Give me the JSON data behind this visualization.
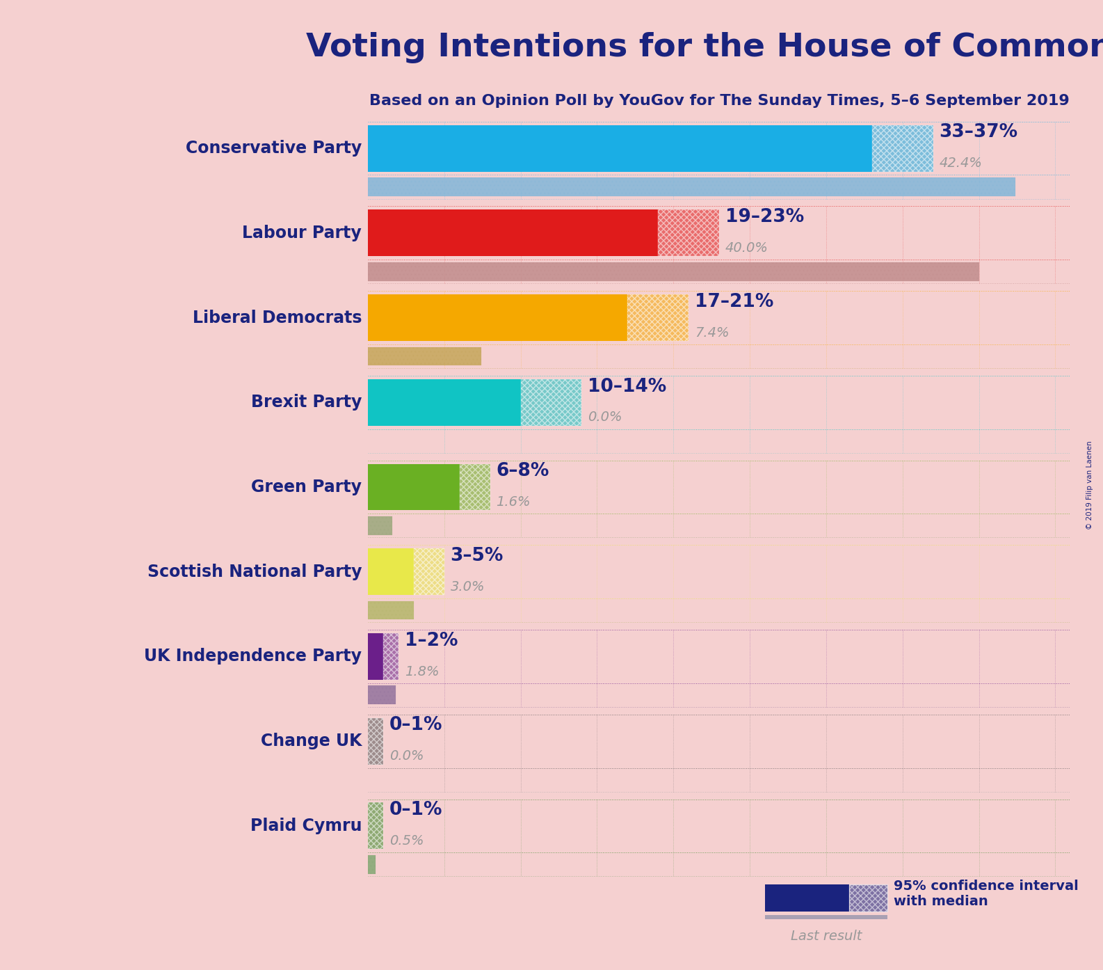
{
  "title": "Voting Intentions for the House of Commons",
  "subtitle": "Based on an Opinion Poll by YouGov for The Sunday Times, 5–6 September 2019",
  "copyright": "© 2019 Filip van Laenen",
  "background_color": "#f5d0d0",
  "parties": [
    "Conservative Party",
    "Labour Party",
    "Liberal Democrats",
    "Brexit Party",
    "Green Party",
    "Scottish National Party",
    "UK Independence Party",
    "Change UK",
    "Plaid Cymru"
  ],
  "bar_low": [
    33,
    19,
    17,
    10,
    6,
    3,
    1,
    0,
    0
  ],
  "bar_high": [
    37,
    23,
    21,
    14,
    8,
    5,
    2,
    1,
    1
  ],
  "last_result": [
    42.4,
    40.0,
    7.4,
    0.0,
    1.6,
    3.0,
    1.8,
    0.0,
    0.5
  ],
  "range_labels": [
    "33–37%",
    "19–23%",
    "17–21%",
    "10–14%",
    "6–8%",
    "3–5%",
    "1–2%",
    "0–1%",
    "0–1%"
  ],
  "last_result_labels": [
    "42.4%",
    "40.0%",
    "7.4%",
    "0.0%",
    "1.6%",
    "3.0%",
    "1.8%",
    "0.0%",
    "0.5%"
  ],
  "bar_colors": [
    "#1aaee5",
    "#e01b1b",
    "#f5a800",
    "#10c4c4",
    "#6ab023",
    "#e8e84a",
    "#6b1f8a",
    "#555555",
    "#3a8a28"
  ],
  "last_result_colors": [
    "#88b8d8",
    "#c49090",
    "#c8a860",
    "#88c8c8",
    "#a0aa80",
    "#b8b870",
    "#9878a0",
    "#aaaaaa",
    "#88aa78"
  ],
  "dot_colors": [
    "#1aaee5",
    "#e01b1b",
    "#f5a800",
    "#10c4c4",
    "#6ab023",
    "#e8e84a",
    "#6b1f8a",
    "#555555",
    "#3a8a28"
  ],
  "label_color": "#1a237e",
  "range_label_color": "#1a237e",
  "last_result_label_color": "#999999",
  "title_color": "#1a237e",
  "subtitle_color": "#1a237e",
  "xlim_max": 46,
  "bar_height": 0.55,
  "lr_bar_height": 0.22,
  "party_label_fontsize": 17,
  "range_label_fontsize": 19,
  "last_result_fontsize": 14,
  "title_fontsize": 34,
  "subtitle_fontsize": 16,
  "legend_label_fontsize": 14
}
